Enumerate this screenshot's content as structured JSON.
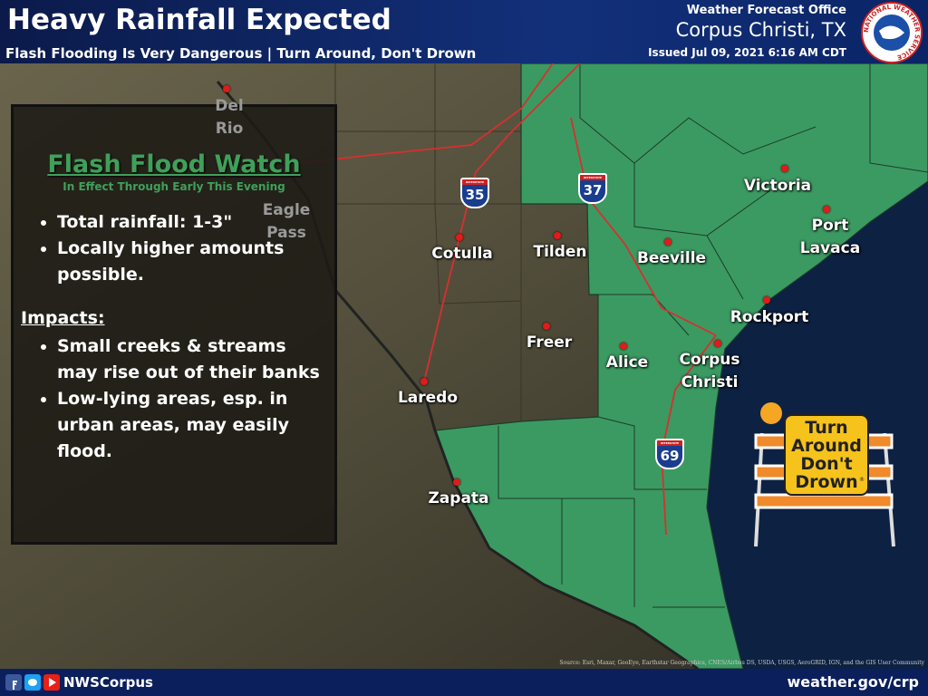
{
  "header": {
    "title": "Heavy Rainfall Expected",
    "subtitle": "Flash Flooding Is Very Dangerous | Turn Around, Don't Drown",
    "office_label": "Weather Forecast Office",
    "office": "Corpus Christi, TX",
    "issued": "Issued Jul 09, 2021 6:16 AM CDT",
    "logo_text": "NATIONAL WEATHER SERVICE"
  },
  "panel": {
    "title": "Flash Flood Watch",
    "subtitle": "In Effect Through Early This Evening",
    "bullets": [
      "Total rainfall: 1-3\"",
      "Locally higher amounts possible."
    ],
    "impacts_label": "Impacts:",
    "impacts": [
      "Small creeks & streams may rise out of their banks",
      "Low-lying areas, esp. in urban areas, may easily flood."
    ]
  },
  "cities": [
    {
      "lines": [
        "Del",
        "Rio"
      ]
    },
    {
      "lines": [
        "Eagle",
        "Pass"
      ]
    },
    {
      "lines": [
        "Cotulla"
      ]
    },
    {
      "lines": [
        "Tilden"
      ]
    },
    {
      "lines": [
        "Beeville"
      ]
    },
    {
      "lines": [
        "Victoria"
      ]
    },
    {
      "lines": [
        "Port",
        "Lavaca"
      ]
    },
    {
      "lines": [
        "Rockport"
      ]
    },
    {
      "lines": [
        "Corpus",
        "Christi"
      ]
    },
    {
      "lines": [
        "Alice"
      ]
    },
    {
      "lines": [
        "Freer"
      ]
    },
    {
      "lines": [
        "Laredo"
      ]
    },
    {
      "lines": [
        "Zapata"
      ]
    }
  ],
  "highways": [
    {
      "name": "INTERSTATE",
      "number": "35"
    },
    {
      "name": "INTERSTATE",
      "number": "37"
    },
    {
      "name": "INTERSTATE",
      "number": "69"
    }
  ],
  "sign": {
    "lines": [
      "Turn",
      "Around",
      "Don't",
      "Drown"
    ],
    "mark": "®"
  },
  "attribution": "Source: Esri, Maxar, GeoEye, Earthstar Geographics, CNES/Airbus DS, USDA, USGS, AeroGRID, IGN, and the GIS User Community",
  "footer": {
    "social": "NWSCorpus",
    "website": "weather.gov/crp"
  }
}
